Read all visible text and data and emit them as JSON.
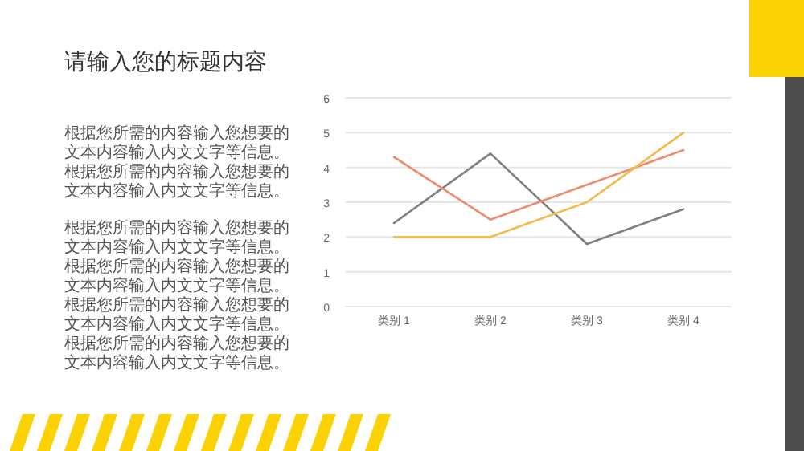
{
  "chart_data": {
    "type": "line",
    "title": "请输入您的标题内容",
    "annotations": [
      "根据您所需的内容输入您想要的文本内容输入内文文字等信息。根据您所需的内容输入您想要的文本内容输入内文文字等信息。",
      "根据您所需的内容输入您想要的文本内容输入内文文字等信息。根据您所需的内容输入您想要的文本内容输入内文文字等信息。根据您所需的内容输入您想要的文本内容输入内文文字等信息。根据您所需的内容输入您想要的文本内容输入内文文字等信息。"
    ],
    "categories": [
      "类别 1",
      "类别 2",
      "类别 3",
      "类别 4"
    ],
    "series": [
      {
        "color": "#7f7f7f",
        "values": [
          2.4,
          4.4,
          1.8,
          2.8
        ]
      },
      {
        "color": "#ee8a6e",
        "values": [
          4.3,
          2.5,
          3.5,
          4.5
        ]
      },
      {
        "color": "#f6b94c",
        "values": [
          2.0,
          2.0,
          3.0,
          5.0
        ]
      }
    ],
    "ylim": [
      0,
      6
    ],
    "yticks": [
      0,
      1,
      2,
      3,
      4,
      5,
      6
    ],
    "grid": "y",
    "marker": "none",
    "line_style": "solid"
  }
}
